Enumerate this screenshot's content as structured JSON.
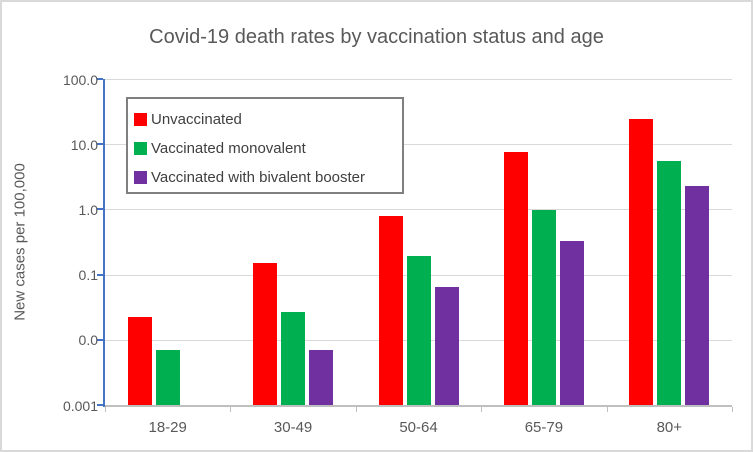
{
  "chart_data": {
    "type": "bar",
    "title": "Covid-19 death rates by vaccination status and age",
    "ylabel": "New cases per 100,000",
    "xlabel": "",
    "categories": [
      "18-29",
      "30-49",
      "50-64",
      "65-79",
      "80+"
    ],
    "series": [
      {
        "name": "Unvaccinated",
        "color": "#FF0000",
        "values": [
          0.022,
          0.15,
          0.8,
          7.7,
          24
        ]
      },
      {
        "name": "Vaccinated monovalent",
        "color": "#00B050",
        "values": [
          0.007,
          0.027,
          0.19,
          0.97,
          5.6
        ]
      },
      {
        "name": "Vaccinated with bivalent booster",
        "color": "#7030A0",
        "values": [
          null,
          0.007,
          0.065,
          0.33,
          2.3
        ]
      }
    ],
    "y_axis": {
      "scale": "log",
      "min": 0.001,
      "max": 100,
      "tick_values": [
        100,
        10,
        1,
        0.1,
        0.01,
        0.001
      ],
      "tick_labels": [
        "100.0",
        "10.0",
        "1.0",
        "0.1",
        "0.0",
        "0.001"
      ]
    },
    "grid": true,
    "legend_position": "top-left-inside",
    "colors": {
      "y_axis_line": "#4472C4",
      "x_axis_line": "#BFBFBF",
      "gridline": "#D9D9D9",
      "text": "#595959",
      "legend_border": "#7F7F7F"
    }
  }
}
